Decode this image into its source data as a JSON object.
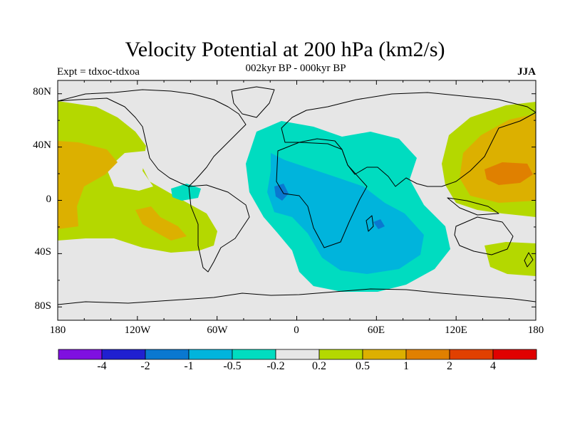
{
  "title": "Velocity Potential at 200 hPa (km2/s)",
  "subtitle": "002kyr BP - 000kyr BP",
  "left_label": "Expt = tdxoc-tdxoa",
  "right_label": "JJA",
  "map": {
    "projection": "cylindrical equidistant",
    "lon_range": [
      -180,
      180
    ],
    "lat_range": [
      -90,
      90
    ],
    "ocean_color": "#e6e6e6",
    "coastline_color": "#000000",
    "lat_ticks": [
      "80N",
      "40N",
      "0",
      "40S",
      "80S"
    ],
    "lon_ticks": [
      "180",
      "120W",
      "60W",
      "0",
      "60E",
      "120E",
      "180"
    ]
  },
  "colorbar": {
    "colors": [
      "#7f10e0",
      "#2020d0",
      "#0a78d0",
      "#00b4dc",
      "#00dcc0",
      "#e6e6e6",
      "#b4d800",
      "#dcb000",
      "#e08000",
      "#e04000",
      "#e00000"
    ],
    "labels": [
      "-4",
      "-2",
      "-1",
      "-0.5",
      "-0.2",
      "0.2",
      "0.5",
      "1",
      "2",
      "4"
    ]
  },
  "chart_data": {
    "type": "heatmap",
    "title": "Velocity Potential at 200 hPa (km2/s)",
    "subtitle": "002kyr BP - 000kyr BP",
    "season": "JJA",
    "contour_levels": [
      -4,
      -2,
      -1,
      -0.5,
      -0.2,
      0.2,
      0.5,
      1,
      2,
      4
    ],
    "xlim": [
      -180,
      180
    ],
    "ylim": [
      -90,
      90
    ],
    "regions": [
      {
        "description": "Africa / Atlantic / Indian Ocean divergence center",
        "range": "-0.5 to -1",
        "center": [
          40,
          -20
        ]
      },
      {
        "description": "North Atlantic / Europe / Arabia",
        "range": "-0.2 to -0.5",
        "center": [
          20,
          30
        ]
      },
      {
        "description": "Western North Pacific",
        "range": "1 to 2",
        "center": [
          150,
          20
        ]
      },
      {
        "description": "Eastern Pacific",
        "range": "0.5 to 1",
        "center": [
          -160,
          20
        ]
      }
    ]
  }
}
